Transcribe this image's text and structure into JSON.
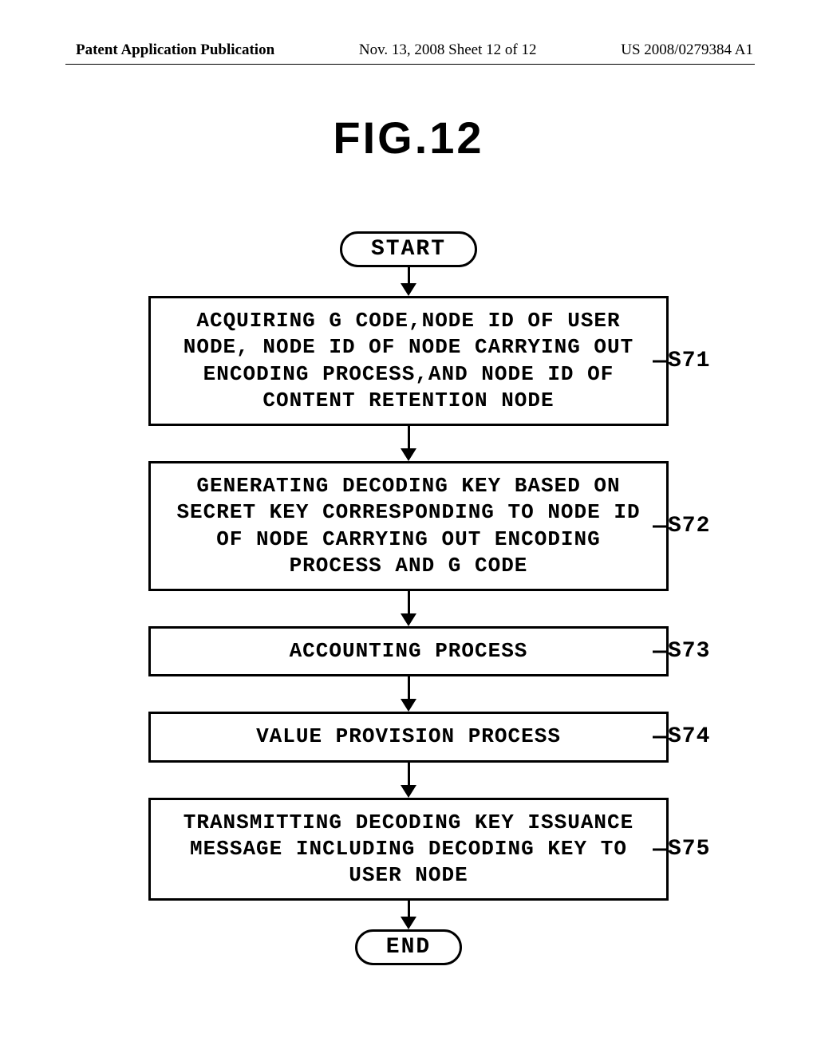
{
  "header": {
    "left": "Patent Application Publication",
    "center": "Nov. 13, 2008  Sheet 12 of 12",
    "right": "US 2008/0279384 A1"
  },
  "figure": {
    "title": "FIG.12"
  },
  "flowchart": {
    "type": "flowchart",
    "border_color": "#000000",
    "background_color": "#ffffff",
    "line_width": 3,
    "font_family": "Courier New",
    "font_size": 26,
    "font_weight": "bold",
    "start": {
      "label": "START"
    },
    "end": {
      "label": "END"
    },
    "steps": [
      {
        "id": "S71",
        "text": "ACQUIRING G CODE,NODE ID OF USER NODE, NODE ID OF NODE CARRYING OUT ENCODING PROCESS,AND NODE ID OF CONTENT RETENTION NODE"
      },
      {
        "id": "S72",
        "text": "GENERATING DECODING KEY BASED ON SECRET KEY CORRESPONDING TO NODE ID OF NODE CARRYING OUT ENCODING PROCESS AND G CODE"
      },
      {
        "id": "S73",
        "text": "ACCOUNTING PROCESS"
      },
      {
        "id": "S74",
        "text": "VALUE PROVISION PROCESS"
      },
      {
        "id": "S75",
        "text": "TRANSMITTING DECODING KEY ISSUANCE MESSAGE INCLUDING DECODING KEY TO USER NODE"
      }
    ]
  }
}
